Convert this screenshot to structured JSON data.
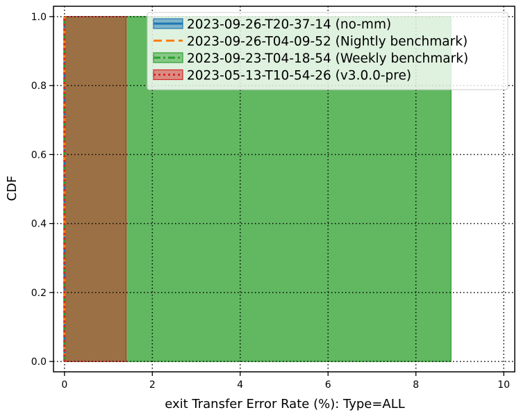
{
  "chart_data": {
    "type": "area",
    "xlabel": "exit Transfer Error Rate (%): Type=ALL",
    "ylabel": "CDF",
    "xlim": [
      -0.25,
      10.25
    ],
    "ylim": [
      -0.03,
      1.03
    ],
    "xticks": [
      0,
      2,
      4,
      6,
      8,
      10
    ],
    "xtick_labels": [
      "0",
      "2",
      "4",
      "6",
      "8",
      "10"
    ],
    "yticks": [
      0.0,
      0.2,
      0.4,
      0.6,
      0.8,
      1.0
    ],
    "ytick_labels": [
      "0.0",
      "0.2",
      "0.4",
      "0.6",
      "0.8",
      "1.0"
    ],
    "grid": true,
    "legend_position": "top-right",
    "series": [
      {
        "name": "2023-09-26-T20-37-14 (no-mm)",
        "color": "#1f77b4",
        "line_style": "solid",
        "x": [
          0,
          0
        ],
        "y": [
          0,
          1
        ],
        "band": null
      },
      {
        "name": "2023-09-26-T04-09-52 (Nightly benchmark)",
        "color": "#ff7f0e",
        "line_style": "dashed",
        "x": [
          0,
          0
        ],
        "y": [
          0,
          1
        ],
        "band": null
      },
      {
        "name": "2023-09-23-T04-18-54 (Weekly benchmark)",
        "color": "#2ca02c",
        "line_style": "dashdot",
        "x": [
          0,
          0
        ],
        "y": [
          0,
          1
        ],
        "band": [
          0,
          8.8
        ]
      },
      {
        "name": "2023-05-13-T10-54-26 (v3.0.0-pre)",
        "color": "#d62728",
        "line_style": "dotted",
        "x": [
          0,
          0
        ],
        "y": [
          0,
          1
        ],
        "band": [
          0,
          1.4
        ]
      }
    ]
  }
}
